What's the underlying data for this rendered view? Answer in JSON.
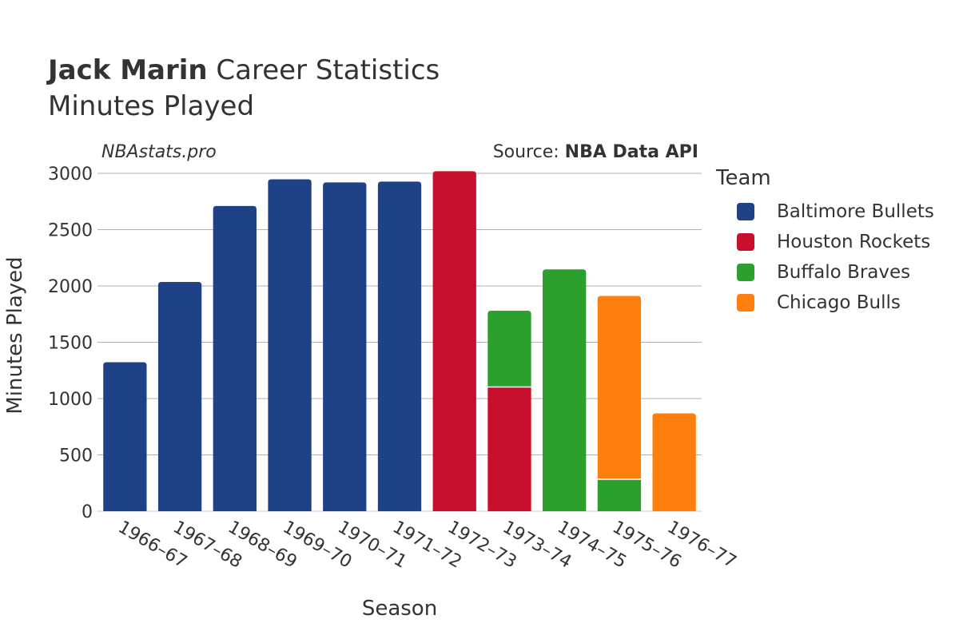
{
  "header": {
    "title_bold": "Jack Marin",
    "title_rest": " Career Statistics",
    "subtitle": "Minutes Played",
    "site": "NBAstats.pro",
    "source_prefix": "Source: ",
    "source_bold": "NBA Data API"
  },
  "chart_data": {
    "type": "bar",
    "stacked": true,
    "title": "Jack Marin Career Statistics",
    "subtitle": "Minutes Played",
    "xlabel": "Season",
    "ylabel": "Minutes Played",
    "ylim": [
      0,
      3050
    ],
    "yticks": [
      0,
      500,
      1000,
      1500,
      2000,
      2500,
      3000
    ],
    "ytick_labels": [
      "0",
      "500",
      "1000",
      "1500",
      "2000",
      "2500",
      "3000"
    ],
    "grid": true,
    "legend_title": "Team",
    "legend_position": "right",
    "categories": [
      "1966–67",
      "1967–68",
      "1968–69",
      "1969–70",
      "1970–71",
      "1971–72",
      "1972–73",
      "1973–74",
      "1974–75",
      "1975–76",
      "1976–77"
    ],
    "series": [
      {
        "name": "Baltimore Bullets",
        "color": "#1f4287",
        "values": [
          1323,
          2036,
          2710,
          2947,
          2920,
          2927,
          0,
          0,
          0,
          0,
          0
        ]
      },
      {
        "name": "Houston Rockets",
        "color": "#c8102e",
        "values": [
          0,
          0,
          0,
          0,
          0,
          0,
          3019,
          1103,
          0,
          0,
          0
        ]
      },
      {
        "name": "Buffalo Braves",
        "color": "#2ca02c",
        "values": [
          0,
          0,
          0,
          0,
          0,
          0,
          0,
          677,
          2147,
          284,
          0
        ]
      },
      {
        "name": "Chicago Bulls",
        "color": "#ff7f0e",
        "values": [
          0,
          0,
          0,
          0,
          0,
          0,
          0,
          0,
          0,
          1628,
          869
        ]
      }
    ]
  }
}
